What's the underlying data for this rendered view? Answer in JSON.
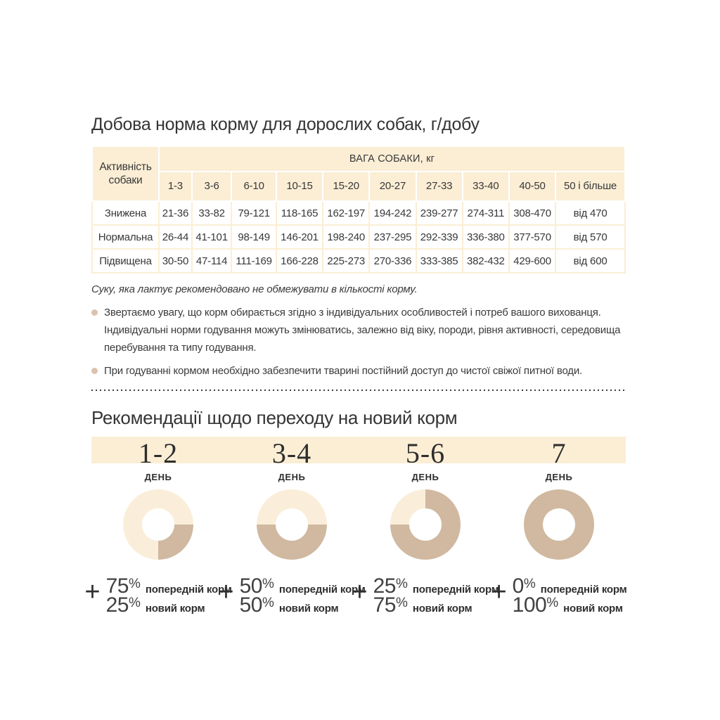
{
  "page": {
    "title": "Добова норма корму для дорослих собак, г/добу",
    "section2_title": "Рекомендації щодо переходу на новий корм"
  },
  "table": {
    "corner_label": "Активність собаки",
    "weight_header": "ВАГА СОБАКИ, кг",
    "weight_columns": [
      "1-3",
      "3-6",
      "6-10",
      "10-15",
      "15-20",
      "20-27",
      "27-33",
      "33-40",
      "40-50",
      "50 і більше"
    ],
    "rows": [
      {
        "activity": "Знижена",
        "values": [
          "21-36",
          "33-82",
          "79-121",
          "118-165",
          "162-197",
          "194-242",
          "239-277",
          "274-311",
          "308-470",
          "від 470"
        ]
      },
      {
        "activity": "Нормальна",
        "values": [
          "26-44",
          "41-101",
          "98-149",
          "146-201",
          "198-240",
          "237-295",
          "292-339",
          "336-380",
          "377-570",
          "від 570"
        ]
      },
      {
        "activity": "Підвищена",
        "values": [
          "30-50",
          "47-114",
          "111-169",
          "166-228",
          "225-273",
          "270-336",
          "333-385",
          "382-432",
          "429-600",
          "від 600"
        ]
      }
    ]
  },
  "notes": {
    "lactating": "Суку, яка лактує рекомендовано не обмежувати в кількості корму.",
    "bullets": [
      "Звертаємо увагу, що корм обирається згідно з індивідуальних особливостей і потреб вашого вихованця. Індивідуальні норми годування можуть змінюватись, залежно від віку, породи, рівня активності, середовища перебування та типу годування.",
      "При годуванні кормом необхідно забезпечити тварині постійний доступ до чистої свіжої питної води."
    ]
  },
  "transition": {
    "day_label": "ДЕНЬ",
    "plus_sign": "+",
    "steps": [
      {
        "days": "1-2",
        "previous_pct": "75",
        "new_pct": "25",
        "previous_label": "попередній корм",
        "new_label": "новий корм",
        "new_arc": [
          90,
          180
        ]
      },
      {
        "days": "3-4",
        "previous_pct": "50",
        "new_pct": "50",
        "previous_label": "попередній корм",
        "new_label": "новий корм",
        "new_arc": [
          90,
          270
        ]
      },
      {
        "days": "5-6",
        "previous_pct": "25",
        "new_pct": "75",
        "previous_label": "попередній корм",
        "new_label": "новий корм",
        "new_arc": [
          0,
          270
        ]
      },
      {
        "days": "7",
        "previous_pct": "0",
        "new_pct": "100",
        "previous_label": "попередній корм",
        "new_label": "новий корм",
        "new_arc": [
          0,
          360
        ]
      }
    ],
    "pct_symbol": "%"
  },
  "colors": {
    "peach_bg": "#fbeed5",
    "donut_light": "#faeeda",
    "donut_dark": "#d0b9a0",
    "bullet_dot": "#dac2af",
    "text": "#3a3a3a"
  },
  "chart_data": [
    {
      "type": "pie",
      "title": "День 1-2",
      "labels": [
        "попередній корм",
        "новий корм"
      ],
      "values": [
        75,
        25
      ]
    },
    {
      "type": "pie",
      "title": "День 3-4",
      "labels": [
        "попередній корм",
        "новий корм"
      ],
      "values": [
        50,
        50
      ]
    },
    {
      "type": "pie",
      "title": "День 5-6",
      "labels": [
        "попередній корм",
        "новий корм"
      ],
      "values": [
        25,
        75
      ]
    },
    {
      "type": "pie",
      "title": "День 7",
      "labels": [
        "попередній корм",
        "новий корм"
      ],
      "values": [
        0,
        100
      ]
    }
  ]
}
